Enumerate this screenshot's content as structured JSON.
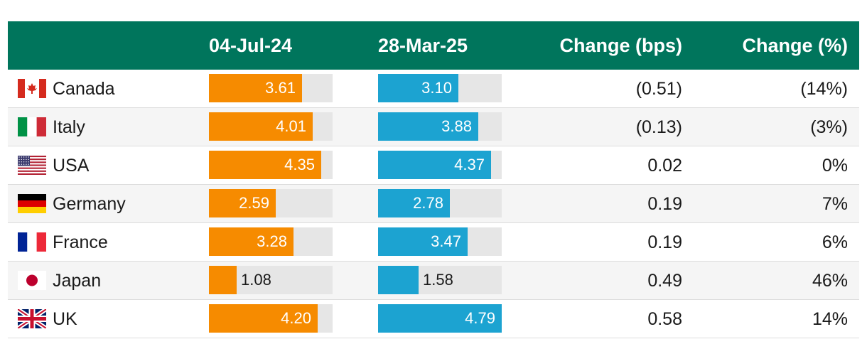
{
  "chart_data": {
    "type": "table",
    "columns": [
      "",
      "04-Jul-24",
      "28-Mar-25",
      "Change (bps)",
      "Change (%)"
    ],
    "scale_max": 4.79,
    "colors": {
      "header_bg": "#00755c",
      "series_jul": "#f68b00",
      "series_mar": "#1ca3d1",
      "track": "#e6e6e6"
    },
    "rows": [
      {
        "country": "Canada",
        "flag": "canada-flag",
        "jul": 3.61,
        "jul_label": "3.61",
        "mar": 3.1,
        "mar_label": "3.10",
        "chg_bps": "(0.51)",
        "chg_pct": "(14%)"
      },
      {
        "country": "Italy",
        "flag": "italy-flag",
        "jul": 4.01,
        "jul_label": "4.01",
        "mar": 3.88,
        "mar_label": "3.88",
        "chg_bps": "(0.13)",
        "chg_pct": "(3%)"
      },
      {
        "country": "USA",
        "flag": "usa-flag",
        "jul": 4.35,
        "jul_label": "4.35",
        "mar": 4.37,
        "mar_label": "4.37",
        "chg_bps": "0.02",
        "chg_pct": "0%"
      },
      {
        "country": "Germany",
        "flag": "germany-flag",
        "jul": 2.59,
        "jul_label": "2.59",
        "mar": 2.78,
        "mar_label": "2.78",
        "chg_bps": "0.19",
        "chg_pct": "7%"
      },
      {
        "country": "France",
        "flag": "france-flag",
        "jul": 3.28,
        "jul_label": "3.28",
        "mar": 3.47,
        "mar_label": "3.47",
        "chg_bps": "0.19",
        "chg_pct": "6%"
      },
      {
        "country": "Japan",
        "flag": "japan-flag",
        "jul": 1.08,
        "jul_label": "1.08",
        "mar": 1.58,
        "mar_label": "1.58",
        "chg_bps": "0.49",
        "chg_pct": "46%"
      },
      {
        "country": "UK",
        "flag": "uk-flag",
        "jul": 4.2,
        "jul_label": "4.20",
        "mar": 4.79,
        "mar_label": "4.79",
        "chg_bps": "0.58",
        "chg_pct": "14%"
      }
    ]
  }
}
